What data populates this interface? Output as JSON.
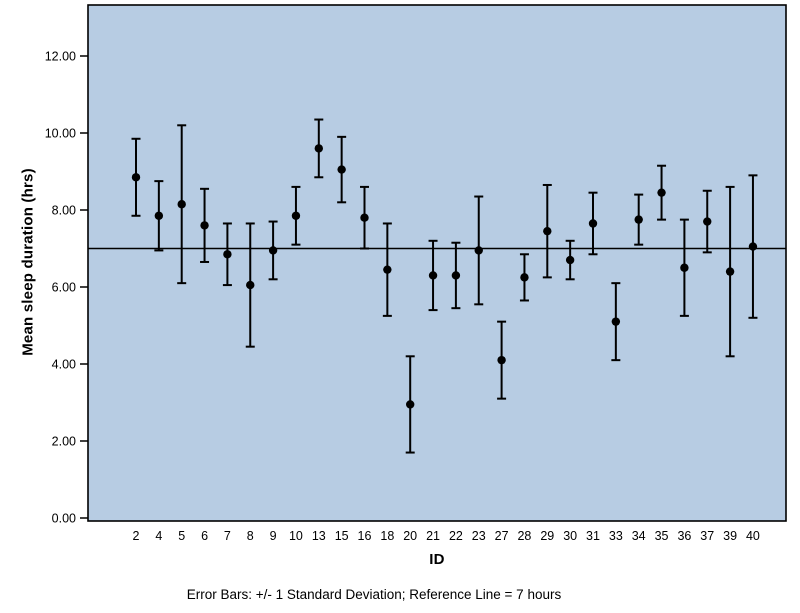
{
  "chart_data": {
    "type": "scatter",
    "subtype": "errorbar",
    "title": "",
    "xlabel": "ID",
    "ylabel": "Mean sleep duration (hrs)",
    "caption": "Error Bars: +/- 1 Standard Deviation; Reference Line = 7 hours",
    "reference_line": 7,
    "ylim": [
      0,
      12
    ],
    "grid": false,
    "legend": "none",
    "yticks": [
      "0.00",
      "2.00",
      "4.00",
      "6.00",
      "8.00",
      "10.00",
      "12.00"
    ],
    "ytick_values": [
      0,
      2,
      4,
      6,
      8,
      10,
      12
    ],
    "categories": [
      "2",
      "4",
      "5",
      "6",
      "7",
      "8",
      "9",
      "10",
      "13",
      "15",
      "16",
      "18",
      "20",
      "21",
      "22",
      "23",
      "27",
      "28",
      "29",
      "30",
      "31",
      "33",
      "34",
      "35",
      "36",
      "37",
      "39",
      "40"
    ],
    "series": [
      {
        "name": "Mean sleep duration",
        "means": [
          8.85,
          7.85,
          8.15,
          7.6,
          6.85,
          6.05,
          6.95,
          7.85,
          9.6,
          9.05,
          7.8,
          6.45,
          2.95,
          6.3,
          6.3,
          6.95,
          4.1,
          6.25,
          7.45,
          6.7,
          7.65,
          5.1,
          7.75,
          8.45,
          6.5,
          7.7,
          6.4,
          7.05
        ],
        "sds": [
          1.0,
          0.9,
          2.05,
          0.95,
          0.8,
          1.6,
          0.75,
          0.75,
          0.75,
          0.85,
          0.8,
          1.2,
          1.25,
          0.9,
          0.85,
          1.4,
          1.0,
          0.6,
          1.2,
          0.5,
          0.8,
          1.0,
          0.65,
          0.7,
          1.25,
          0.8,
          2.2,
          1.85
        ]
      }
    ],
    "colors": {
      "plot_bg": "#b7cce3",
      "marker": "#000000",
      "axis": "#000000",
      "page_bg": "#ffffff"
    }
  }
}
